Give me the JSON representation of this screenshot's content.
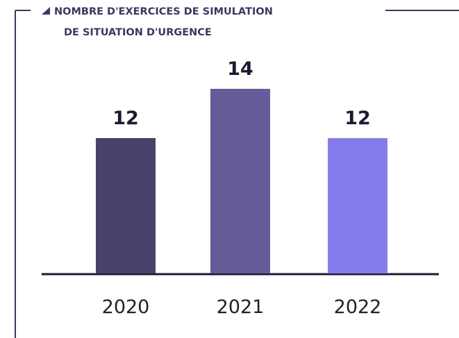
{
  "chart_data": {
    "type": "bar",
    "title": [
      "NOMBRE D'EXERCICES DE SIMULATION",
      "DE SITUATION D'URGENCE"
    ],
    "categories": [
      "2020",
      "2021",
      "2022"
    ],
    "values": [
      12,
      14,
      12
    ],
    "colors": [
      "#47416b",
      "#655c99",
      "#857cec"
    ],
    "ylim": [
      6.5,
      14
    ]
  }
}
